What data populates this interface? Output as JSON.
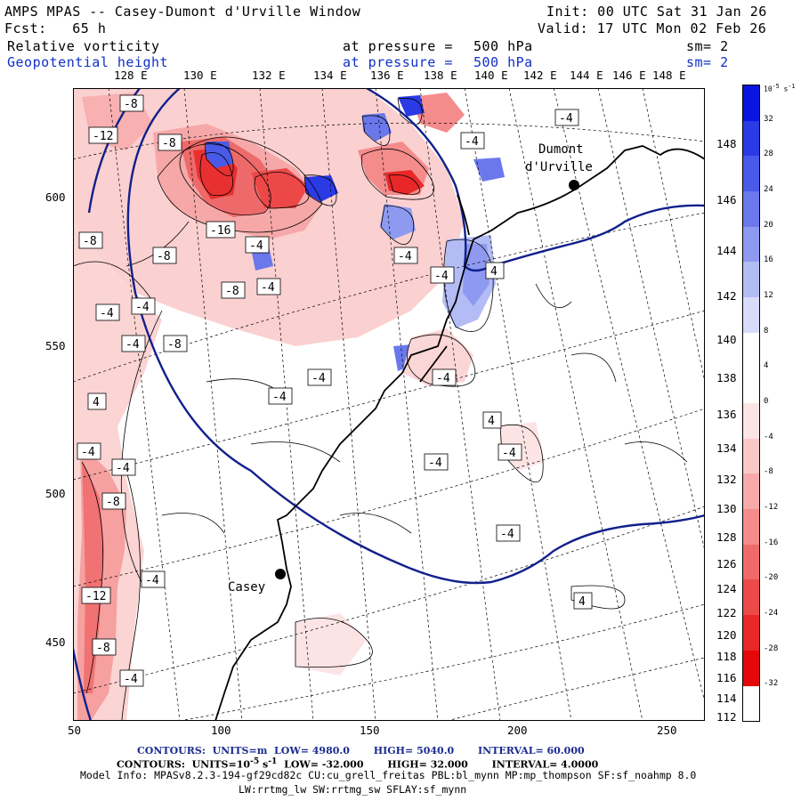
{
  "header": {
    "title": "AMPS MPAS -- Casey-Dumont d'Urville Window",
    "init": "Init: 00 UTC Sat 31 Jan 26",
    "fcst": "Fcst:   65 h",
    "valid": "Valid: 17 UTC Mon 02 Feb 26",
    "field1": {
      "name": "Relative vorticity",
      "level_label": "at pressure =",
      "level": "500 hPa",
      "smooth": "sm= 2"
    },
    "field2": {
      "name": "Geopotential height",
      "level_label": "at pressure =",
      "level": "500 hPa",
      "smooth": "sm= 2"
    }
  },
  "map": {
    "top_lon_labels": [
      "128 E",
      "130 E",
      "132 E",
      "134 E",
      "136 E",
      "138 E",
      "140 E",
      "142 E",
      "144 E",
      "146 E",
      "148 E"
    ],
    "right_lat_labels": [
      "148 E",
      "146 E",
      "144 E",
      "142 E",
      "140 E",
      "138 E",
      "136 E",
      "134 E",
      "132 E",
      "130 E",
      "128 E",
      "126 E",
      "124 E",
      "122 E",
      "120 E",
      "118 E",
      "116 E",
      "114 E",
      "112 E"
    ],
    "x_axis": [
      "50",
      "100",
      "150",
      "200",
      "250"
    ],
    "y_axis": [
      "600",
      "550",
      "500",
      "450"
    ],
    "stations": [
      {
        "name": "Dumont",
        "name2": "d'Urville"
      },
      {
        "name": "Casey"
      }
    ],
    "contour_labels": [
      "-8",
      "-12",
      "-8",
      "-16",
      "-4",
      "-8",
      "-8",
      "-4",
      "-8",
      "-4",
      "-4",
      "-4",
      "-4",
      "-4",
      "-4",
      "4",
      "-4",
      "-4",
      "4",
      "-4",
      "-4",
      "-8",
      "-8",
      "-4",
      "-12",
      "-8",
      "-4",
      "-4",
      "-4",
      "4",
      "-4",
      "-4",
      "4",
      "-4"
    ]
  },
  "colorbar": {
    "unit": "10",
    "unit_exp": "-5",
    "unit_tail": "s",
    "unit_tail_exp": "-1",
    "labels": [
      "32",
      "28",
      "24",
      "20",
      "16",
      "12",
      "8",
      "4",
      "0",
      "-4",
      "-8",
      "-12",
      "-16",
      "-20",
      "-24",
      "-28",
      "-32"
    ],
    "colors": [
      "#0a14e0",
      "#2a3ae4",
      "#4a5ae8",
      "#6a78ec",
      "#8e9af0",
      "#b4bcf5",
      "#d8dcfa",
      "#ffffff",
      "#ffffff",
      "#fde4e4",
      "#fbc8c8",
      "#f8aaaa",
      "#f48c8c",
      "#f06a6a",
      "#ec4a4a",
      "#e82828",
      "#e40808"
    ]
  },
  "footer": {
    "line1": {
      "k1": "CONTOURS:",
      "k2": "UNITS=m",
      "k3": "LOW=",
      "low": "4980.0",
      "k4": "HIGH=",
      "high": "5040.0",
      "k5": "INTERVAL=",
      "interval": "60.000"
    },
    "line2": {
      "k1": "CONTOURS:",
      "k2": "UNITS=10",
      "k2exp": "-5",
      "k2b": "s",
      "k2bexp": "-1",
      "k3": "LOW=",
      "low": "-32.000",
      "k4": "HIGH=",
      "high": "32.000",
      "k5": "INTERVAL=",
      "interval": "4.0000"
    },
    "model1": "Model Info: MPASv8.2.3-194-gf29cd82c CU:cu_grell_freitas PBL:bl_mynn MP:mp_thompson SF:sf_noahmp 8.0",
    "model2": "LW:rrtmg_lw SW:rrtmg_sw SFLAY:sf_mynn"
  }
}
